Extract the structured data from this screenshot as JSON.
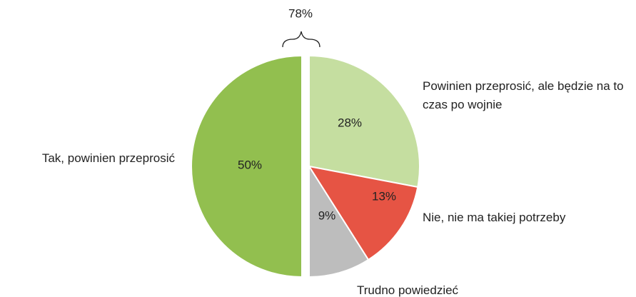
{
  "chart_data": {
    "type": "pie",
    "categories": [
      "Powinien przeprosić, ale będzie na to czas po wojnie",
      "Nie, nie ma takiej potrzeby",
      "Trudno powiedzieć",
      "Tak, powinien przeprosić"
    ],
    "values": [
      28,
      13,
      9,
      50
    ],
    "value_labels": [
      "28%",
      "13%",
      "9%",
      "50%"
    ],
    "colors": [
      "#c5dea0",
      "#e65444",
      "#bdbdbd",
      "#92bf4f"
    ],
    "annotation": "78%"
  }
}
